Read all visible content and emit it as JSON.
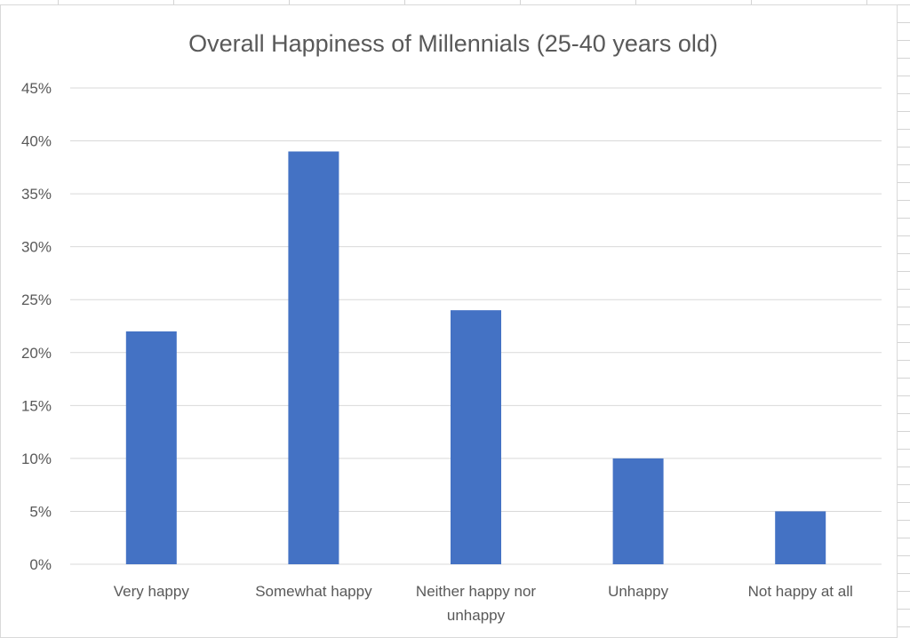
{
  "chart_data": {
    "type": "bar",
    "title": "Overall Happiness of Millennials (25-40 years old)",
    "xlabel": "",
    "ylabel": "",
    "categories": [
      [
        "Very happy"
      ],
      [
        "Somewhat happy"
      ],
      [
        "Neither happy nor",
        "unhappy"
      ],
      [
        "Unhappy"
      ],
      [
        "Not happy at all"
      ]
    ],
    "values": [
      0.22,
      0.39,
      0.24,
      0.1,
      0.05
    ],
    "ylim": [
      0,
      0.45
    ],
    "yticks": [
      "0%",
      "5%",
      "10%",
      "15%",
      "20%",
      "25%",
      "30%",
      "35%",
      "40%",
      "45%"
    ],
    "grid": true,
    "legend": "none",
    "bar_color": "#4472C4"
  }
}
